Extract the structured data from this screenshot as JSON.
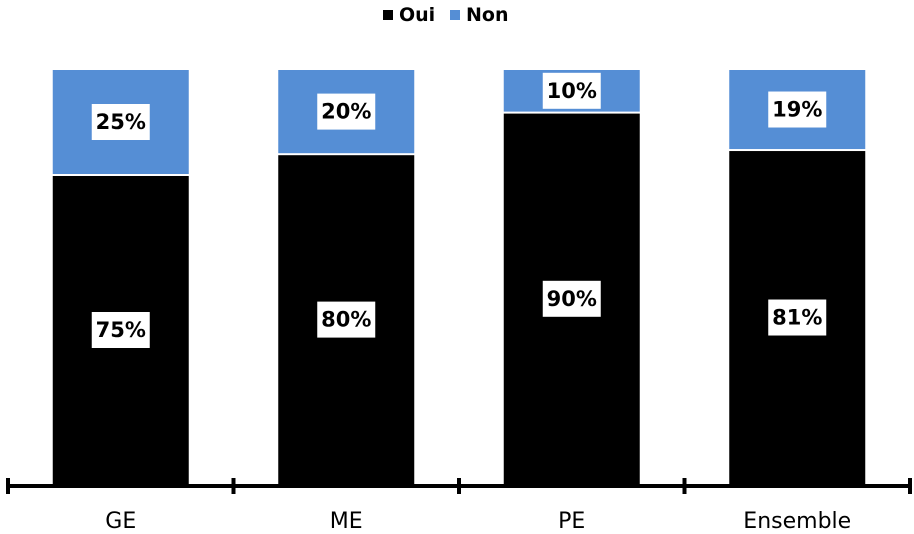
{
  "chart_data": {
    "type": "bar",
    "stacked": true,
    "percent_stacked": true,
    "categories": [
      "GE",
      "ME",
      "PE",
      "Ensemble"
    ],
    "series": [
      {
        "name": "Oui",
        "values": [
          75,
          80,
          90,
          81
        ],
        "color": "#000000",
        "labels": [
          "75%",
          "80%",
          "90%",
          "81%"
        ]
      },
      {
        "name": "Non",
        "values": [
          25,
          20,
          10,
          19
        ],
        "color": "#558ED5",
        "labels": [
          "25%",
          "20%",
          "10%",
          "19%"
        ]
      }
    ],
    "legend_position": "top-center",
    "data_labels": true,
    "grid": false,
    "ylim": [
      0,
      100
    ]
  }
}
